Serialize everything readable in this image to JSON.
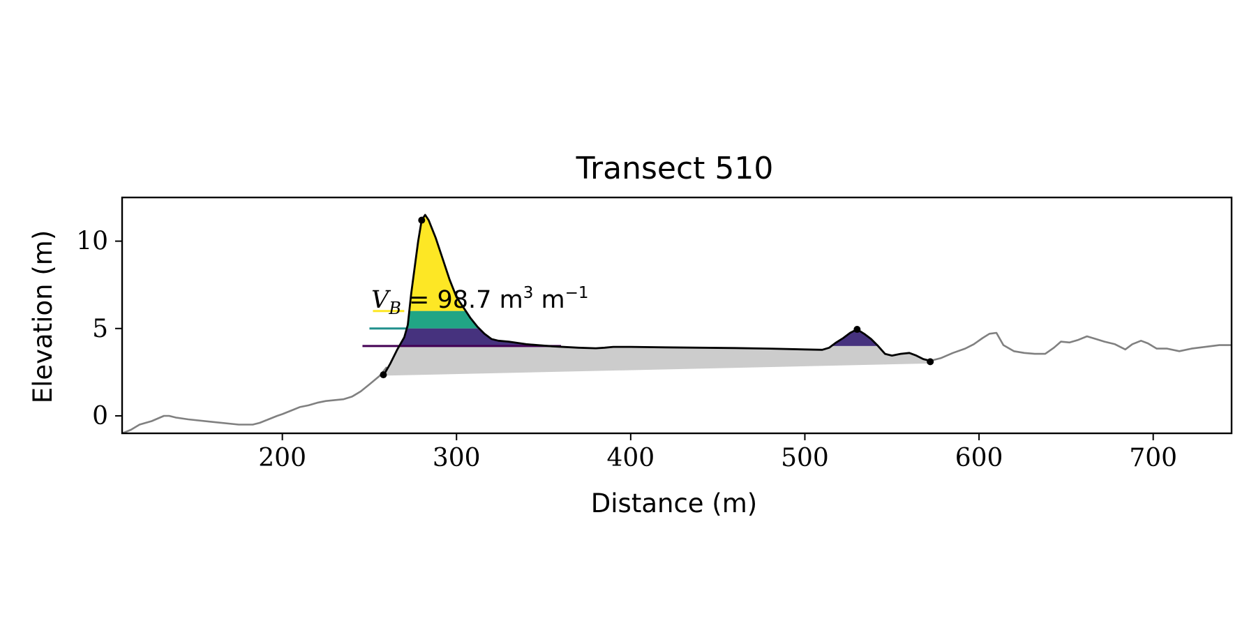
{
  "chart_data": {
    "type": "area",
    "title": "Transect 510",
    "xlabel": "Distance (m)",
    "ylabel": "Elevation (m)",
    "xlim": [
      108,
      745
    ],
    "ylim": [
      -1,
      12.5
    ],
    "xticks": [
      200,
      300,
      400,
      500,
      600,
      700
    ],
    "yticks": [
      0,
      5,
      10
    ],
    "grid": false,
    "annotation": {
      "var": "V",
      "sub": "B",
      "value": "98.7",
      "unit": "m",
      "unit_exp": "3",
      "per": "m",
      "per_exp": "−1"
    },
    "profile": {
      "name": "",
      "color": "#808080",
      "x": [
        108,
        113,
        118,
        125,
        132,
        135,
        139,
        146,
        160,
        175,
        183,
        187,
        192,
        197,
        200,
        205,
        210,
        215,
        220,
        225,
        230,
        235,
        240,
        245,
        250,
        256,
        260
      ],
      "y": [
        -1.0,
        -0.8,
        -0.5,
        -0.3,
        0.0,
        0.0,
        -0.1,
        -0.2,
        -0.35,
        -0.5,
        -0.5,
        -0.4,
        -0.2,
        0.0,
        0.1,
        0.3,
        0.5,
        0.6,
        0.75,
        0.85,
        0.9,
        0.95,
        1.1,
        1.4,
        1.8,
        2.3,
        2.8
      ]
    },
    "profile_seaward": {
      "color": "#808080",
      "x": [
        572,
        578,
        585,
        592,
        597,
        602,
        606,
        610,
        614,
        620,
        626,
        632,
        638,
        643,
        647,
        652,
        657,
        662,
        667,
        672,
        678,
        684,
        688,
        693,
        697,
        702,
        708,
        715,
        722,
        730,
        738,
        745
      ],
      "y": [
        3.15,
        3.3,
        3.6,
        3.85,
        4.1,
        4.45,
        4.7,
        4.75,
        4.05,
        3.7,
        3.6,
        3.55,
        3.55,
        3.9,
        4.25,
        4.2,
        4.35,
        4.55,
        4.4,
        4.25,
        4.1,
        3.8,
        4.1,
        4.3,
        4.15,
        3.85,
        3.85,
        3.7,
        3.85,
        3.95,
        4.05,
        4.05
      ]
    },
    "dune_profile": {
      "color": "#000000",
      "x": [
        258,
        262,
        266,
        270,
        272,
        274,
        276,
        278,
        280,
        282,
        284,
        288,
        292,
        296,
        300,
        304,
        308,
        312,
        316,
        320,
        324,
        330,
        340,
        355,
        370,
        380,
        385,
        390,
        400,
        420,
        440,
        460,
        480,
        500,
        510,
        514,
        518,
        522,
        526,
        530,
        534,
        538,
        542,
        546,
        550,
        555,
        560,
        564,
        568,
        572
      ],
      "y": [
        2.3,
        3.0,
        3.8,
        4.5,
        5.2,
        7.0,
        8.5,
        10.0,
        11.2,
        11.5,
        11.2,
        10.2,
        9.0,
        7.8,
        6.8,
        6.2,
        5.6,
        5.1,
        4.7,
        4.4,
        4.3,
        4.25,
        4.1,
        3.98,
        3.9,
        3.87,
        3.9,
        3.95,
        3.95,
        3.92,
        3.9,
        3.88,
        3.85,
        3.8,
        3.78,
        3.9,
        4.2,
        4.45,
        4.75,
        4.95,
        4.7,
        4.4,
        4.0,
        3.55,
        3.45,
        3.55,
        3.6,
        3.45,
        3.25,
        3.15
      ]
    },
    "base_line": {
      "x": [
        258,
        572
      ],
      "y": [
        2.3,
        3.0
      ]
    },
    "key_points": [
      {
        "x": 258,
        "y": 2.35
      },
      {
        "x": 280,
        "y": 11.2
      },
      {
        "x": 530,
        "y": 4.95
      },
      {
        "x": 572,
        "y": 3.1
      }
    ],
    "fill_base_color": "#cccccc",
    "bands": [
      {
        "y_from": 6.0,
        "y_to": 11.6,
        "color": "#fde725"
      },
      {
        "y_from": 5.0,
        "y_to": 6.0,
        "color": "#21a585"
      },
      {
        "y_from": 4.0,
        "y_to": 5.0,
        "color": "#46327e"
      }
    ],
    "band_ticks": [
      {
        "y": 6.0,
        "x_from": 252,
        "x_to": 270,
        "color": "#fde725"
      },
      {
        "y": 5.0,
        "x_from": 250,
        "x_to": 272,
        "color": "#21908d"
      },
      {
        "y": 4.0,
        "x_from": 246,
        "x_to": 360,
        "color": "#440154"
      }
    ]
  }
}
